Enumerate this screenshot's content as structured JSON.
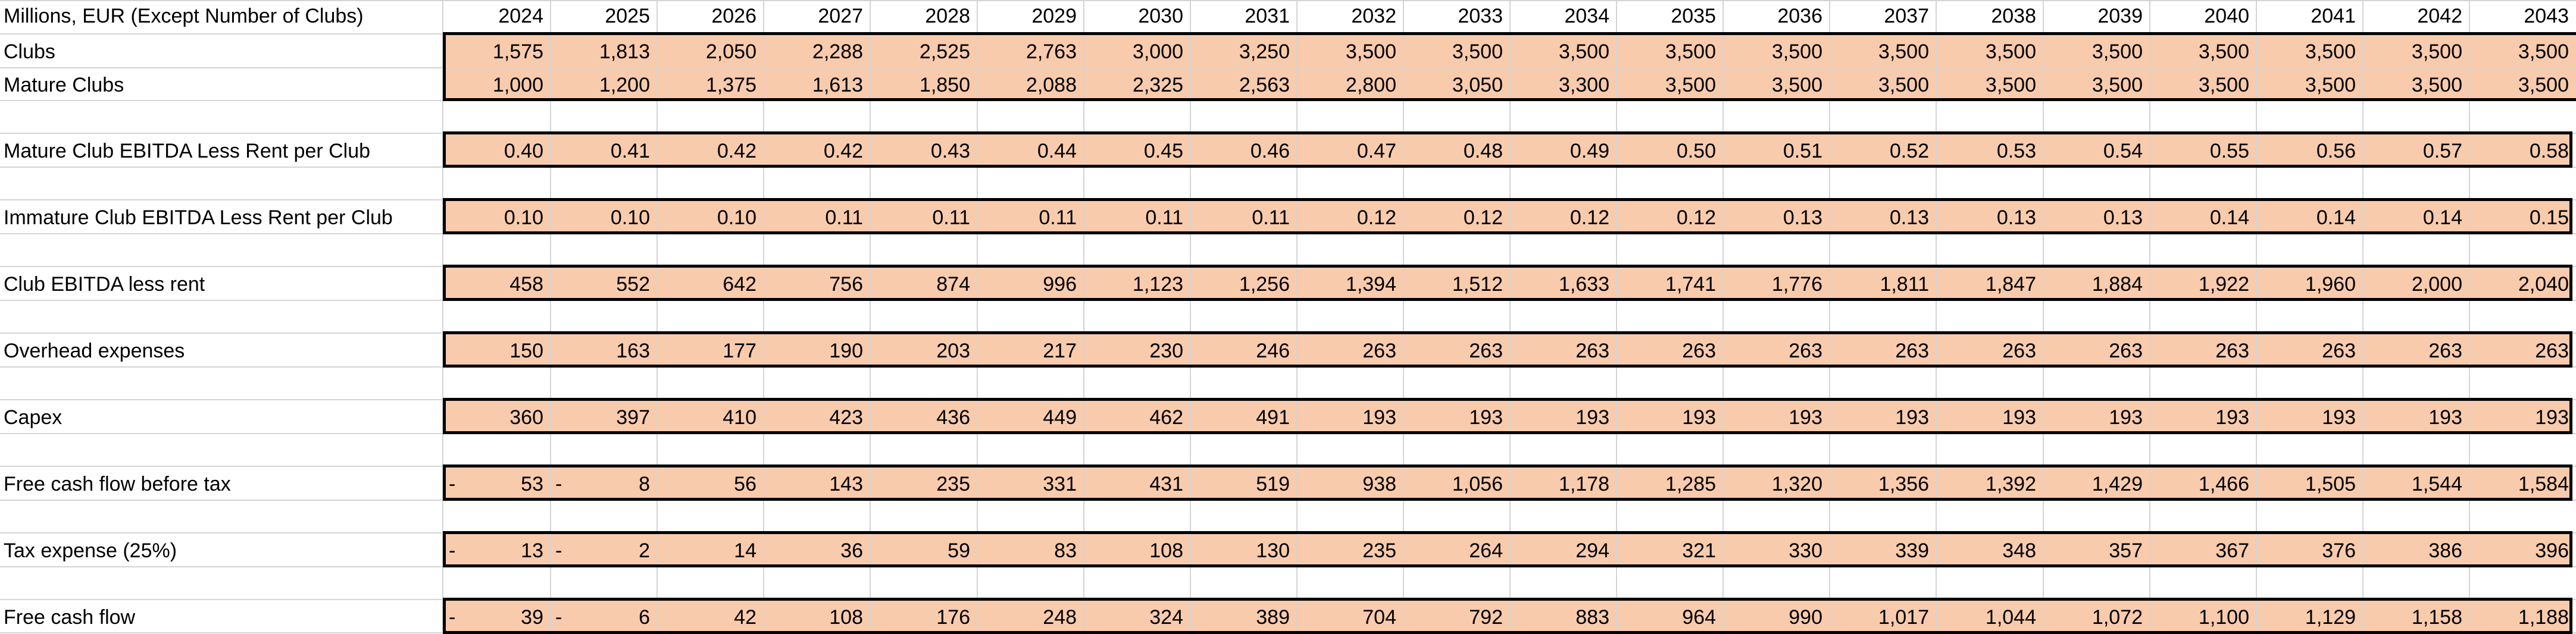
{
  "header_label": "Millions, EUR (Except Number of Clubs)",
  "years": [
    "2024",
    "2025",
    "2026",
    "2027",
    "2028",
    "2029",
    "2030",
    "2031",
    "2032",
    "2033",
    "2034",
    "2035",
    "2036",
    "2037",
    "2038",
    "2039",
    "2040",
    "2041",
    "2042",
    "2043"
  ],
  "rows": [
    {
      "id": "clubs",
      "label": "Clubs",
      "values": [
        "1,575",
        "1,813",
        "2,050",
        "2,288",
        "2,525",
        "2,763",
        "3,000",
        "3,250",
        "3,500",
        "3,500",
        "3,500",
        "3,500",
        "3,500",
        "3,500",
        "3,500",
        "3,500",
        "3,500",
        "3,500",
        "3,500",
        "3,500"
      ]
    },
    {
      "id": "mature-clubs",
      "label": "Mature Clubs",
      "values": [
        "1,000",
        "1,200",
        "1,375",
        "1,613",
        "1,850",
        "2,088",
        "2,325",
        "2,563",
        "2,800",
        "3,050",
        "3,300",
        "3,500",
        "3,500",
        "3,500",
        "3,500",
        "3,500",
        "3,500",
        "3,500",
        "3,500",
        "3,500"
      ]
    },
    {
      "id": "mature-ebitda",
      "label": "Mature Club EBITDA Less Rent per Club",
      "values": [
        "0.40",
        "0.41",
        "0.42",
        "0.42",
        "0.43",
        "0.44",
        "0.45",
        "0.46",
        "0.47",
        "0.48",
        "0.49",
        "0.50",
        "0.51",
        "0.52",
        "0.53",
        "0.54",
        "0.55",
        "0.56",
        "0.57",
        "0.58"
      ]
    },
    {
      "id": "immature-ebitda",
      "label": "Immature Club EBITDA Less Rent per Club",
      "values": [
        "0.10",
        "0.10",
        "0.10",
        "0.11",
        "0.11",
        "0.11",
        "0.11",
        "0.11",
        "0.12",
        "0.12",
        "0.12",
        "0.12",
        "0.13",
        "0.13",
        "0.13",
        "0.13",
        "0.14",
        "0.14",
        "0.14",
        "0.15"
      ]
    },
    {
      "id": "club-ebitda",
      "label": "Club EBITDA less rent",
      "values": [
        "458",
        "552",
        "642",
        "756",
        "874",
        "996",
        "1,123",
        "1,256",
        "1,394",
        "1,512",
        "1,633",
        "1,741",
        "1,776",
        "1,811",
        "1,847",
        "1,884",
        "1,922",
        "1,960",
        "2,000",
        "2,040"
      ]
    },
    {
      "id": "overhead",
      "label": "Overhead expenses",
      "values": [
        "150",
        "163",
        "177",
        "190",
        "203",
        "217",
        "230",
        "246",
        "263",
        "263",
        "263",
        "263",
        "263",
        "263",
        "263",
        "263",
        "263",
        "263",
        "263",
        "263"
      ]
    },
    {
      "id": "capex",
      "label": "Capex",
      "values": [
        "360",
        "397",
        "410",
        "423",
        "436",
        "449",
        "462",
        "491",
        "193",
        "193",
        "193",
        "193",
        "193",
        "193",
        "193",
        "193",
        "193",
        "193",
        "193",
        "193"
      ]
    },
    {
      "id": "fcf-before-tax",
      "label": "Free cash flow before tax",
      "values": [
        "53",
        "8",
        "56",
        "143",
        "235",
        "331",
        "431",
        "519",
        "938",
        "1,056",
        "1,178",
        "1,285",
        "1,320",
        "1,356",
        "1,392",
        "1,429",
        "1,466",
        "1,505",
        "1,544",
        "1,584"
      ],
      "neg_marks": [
        "-",
        "-",
        "",
        "",
        "",
        "",
        "",
        "",
        "",
        "",
        "",
        "",
        "",
        "",
        "",
        "",
        "",
        "",
        "",
        ""
      ]
    },
    {
      "id": "tax-expense",
      "label": "Tax expense (25%)",
      "values": [
        "13",
        "2",
        "14",
        "36",
        "59",
        "83",
        "108",
        "130",
        "235",
        "264",
        "294",
        "321",
        "330",
        "339",
        "348",
        "357",
        "367",
        "376",
        "386",
        "396"
      ],
      "neg_marks": [
        "-",
        "-",
        "",
        "",
        "",
        "",
        "",
        "",
        "",
        "",
        "",
        "",
        "",
        "",
        "",
        "",
        "",
        "",
        "",
        ""
      ]
    },
    {
      "id": "fcf",
      "label": "Free cash flow",
      "values": [
        "39",
        "6",
        "42",
        "108",
        "176",
        "248",
        "324",
        "389",
        "704",
        "792",
        "883",
        "964",
        "990",
        "1,017",
        "1,044",
        "1,072",
        "1,100",
        "1,129",
        "1,158",
        "1,188"
      ],
      "neg_marks": [
        "-",
        "-",
        "",
        "",
        "",
        "",
        "",
        "",
        "",
        "",
        "",
        "",
        "",
        "",
        "",
        "",
        "",
        "",
        "",
        ""
      ]
    }
  ],
  "colors": {
    "cell_fill": "#f8cbad",
    "grid": "#d4d4d4",
    "border": "#000000"
  }
}
